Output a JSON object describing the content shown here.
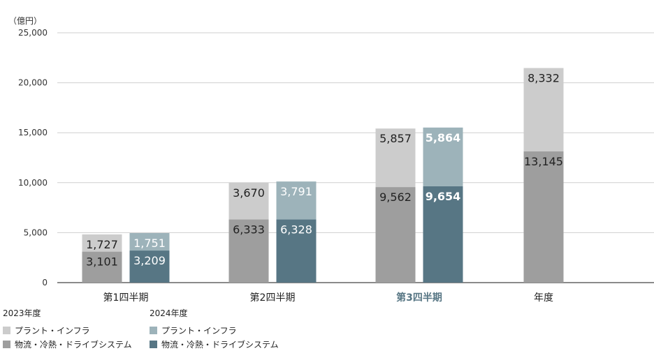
{
  "chart_data": {
    "type": "bar",
    "stacked": true,
    "unit_label": "（億円）",
    "ylim": [
      0,
      25000
    ],
    "yticks": [
      "0",
      "5,000",
      "10,000",
      "15,000",
      "20,000",
      "25,000"
    ],
    "ytick_values": [
      0,
      5000,
      10000,
      15000,
      20000,
      25000
    ],
    "categories": [
      "第1四半期",
      "第2四半期",
      "第3四半期",
      "年度"
    ],
    "highlight_category": "第3四半期",
    "series": [
      {
        "year": "2023年度",
        "segments": [
          {
            "name": "物流・冷熱・ドライブシステム",
            "color": "#9e9e9e",
            "values": [
              3101,
              6333,
              9562,
              13145
            ],
            "labels": [
              "3,101",
              "6,333",
              "9,562",
              "13,145"
            ],
            "label_color": "#222222"
          },
          {
            "name": "プラント・インフラ",
            "color": "#cccccc",
            "values": [
              1727,
              3670,
              5857,
              8332
            ],
            "labels": [
              "1,727",
              "3,670",
              "5,857",
              "8,332"
            ],
            "label_color": "#222222"
          }
        ]
      },
      {
        "year": "2024年度",
        "segments": [
          {
            "name": "物流・冷熱・ドライブシステム",
            "color": "#577684",
            "values": [
              3209,
              6328,
              9654,
              null
            ],
            "labels": [
              "3,209",
              "6,328",
              "9,654",
              ""
            ],
            "label_color": "#ffffff"
          },
          {
            "name": "プラント・インフラ",
            "color": "#9db3ba",
            "values": [
              1751,
              3791,
              5864,
              null
            ],
            "labels": [
              "1,751",
              "3,791",
              "5,864",
              ""
            ],
            "label_color": "#ffffff"
          }
        ]
      }
    ]
  },
  "legend": {
    "groups": [
      {
        "title": "2023年度",
        "items": [
          {
            "label": "プラント・インフラ",
            "color": "#cccccc"
          },
          {
            "label": "物流・冷熱・ドライブシステム",
            "color": "#9e9e9e"
          }
        ]
      },
      {
        "title": "2024年度",
        "items": [
          {
            "label": "プラント・インフラ",
            "color": "#9db3ba"
          },
          {
            "label": "物流・冷熱・ドライブシステム",
            "color": "#577684"
          }
        ]
      }
    ]
  }
}
